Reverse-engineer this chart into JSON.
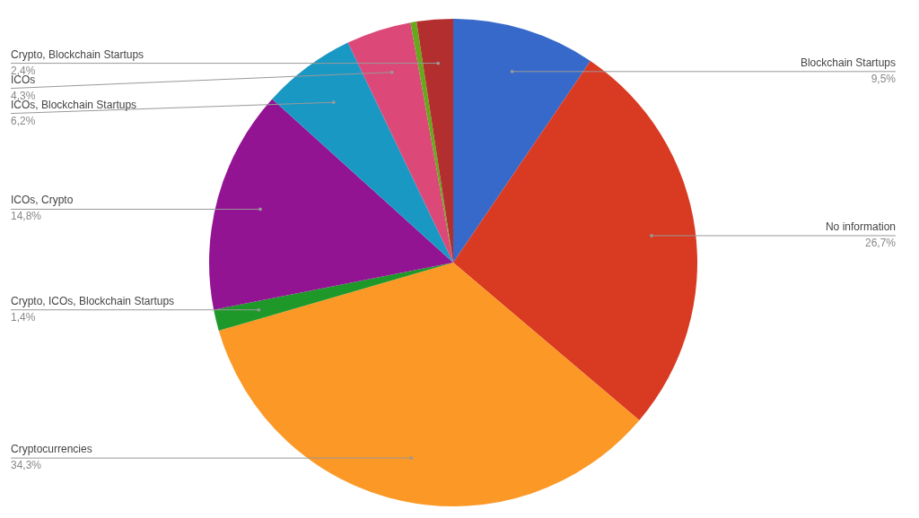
{
  "chart_data": {
    "type": "pie",
    "categories": [
      "Blockchain Startups",
      "No information",
      "Cryptocurrencies",
      "Crypto, ICOs, Blockchain Startups",
      "ICOs, Crypto",
      "ICOs, Blockchain Startups",
      "ICOs",
      null,
      "Crypto, Blockchain Startups"
    ],
    "values": [
      9.5,
      26.7,
      34.3,
      1.4,
      14.8,
      6.2,
      4.3,
      0.4,
      2.4
    ],
    "value_labels": [
      "9,5%",
      "26,7%",
      "34,3%",
      "1,4%",
      "14,8%",
      "6,2%",
      "4,3%",
      null,
      "2,4%"
    ],
    "colors": [
      "#3669c9",
      "#d93a22",
      "#fb9826",
      "#1e9829",
      "#921493",
      "#1a98c4",
      "#dc4877",
      "#66a91c",
      "#b22e2f"
    ]
  }
}
